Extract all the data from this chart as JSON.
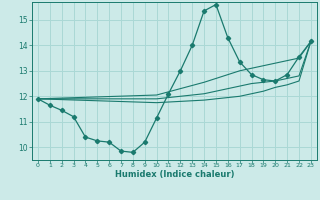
{
  "background_color": "#cceae8",
  "grid_color": "#aad8d5",
  "line_color": "#1a7a6e",
  "xlabel": "Humidex (Indice chaleur)",
  "xlim": [
    -0.5,
    23.5
  ],
  "ylim": [
    9.5,
    15.7
  ],
  "yticks": [
    10,
    11,
    12,
    13,
    14,
    15
  ],
  "xtick_labels": [
    "0",
    "1",
    "2",
    "3",
    "4",
    "5",
    "6",
    "7",
    "8",
    "9",
    "10",
    "11",
    "12",
    "13",
    "14",
    "15",
    "16",
    "17",
    "18",
    "19",
    "20",
    "21",
    "22",
    "23"
  ],
  "xtick_vals": [
    0,
    1,
    2,
    3,
    4,
    5,
    6,
    7,
    8,
    9,
    10,
    11,
    12,
    13,
    14,
    15,
    16,
    17,
    18,
    19,
    20,
    21,
    22,
    23
  ],
  "main_line": {
    "x": [
      0,
      1,
      2,
      3,
      4,
      5,
      6,
      7,
      8,
      9,
      10,
      11,
      12,
      13,
      14,
      15,
      16,
      17,
      18,
      19,
      20,
      21,
      22,
      23
    ],
    "y": [
      11.9,
      11.65,
      11.45,
      11.2,
      10.4,
      10.25,
      10.2,
      9.85,
      9.8,
      10.2,
      11.15,
      12.1,
      13.0,
      14.0,
      15.35,
      15.6,
      14.3,
      13.35,
      12.85,
      12.65,
      12.6,
      12.85,
      13.55,
      14.15
    ]
  },
  "trend_lines": [
    {
      "x": [
        0,
        10,
        14,
        15,
        16,
        17,
        18,
        19,
        20,
        21,
        22,
        23
      ],
      "y": [
        11.9,
        12.05,
        12.55,
        12.7,
        12.85,
        13.0,
        13.1,
        13.2,
        13.3,
        13.4,
        13.5,
        14.15
      ]
    },
    {
      "x": [
        0,
        10,
        14,
        15,
        16,
        17,
        18,
        19,
        20,
        21,
        22,
        23
      ],
      "y": [
        11.9,
        11.9,
        12.1,
        12.2,
        12.3,
        12.4,
        12.5,
        12.55,
        12.6,
        12.7,
        12.8,
        14.15
      ]
    },
    {
      "x": [
        0,
        10,
        14,
        15,
        16,
        17,
        18,
        19,
        20,
        21,
        22,
        23
      ],
      "y": [
        11.9,
        11.75,
        11.85,
        11.9,
        11.95,
        12.0,
        12.1,
        12.2,
        12.35,
        12.45,
        12.6,
        14.15
      ]
    }
  ]
}
